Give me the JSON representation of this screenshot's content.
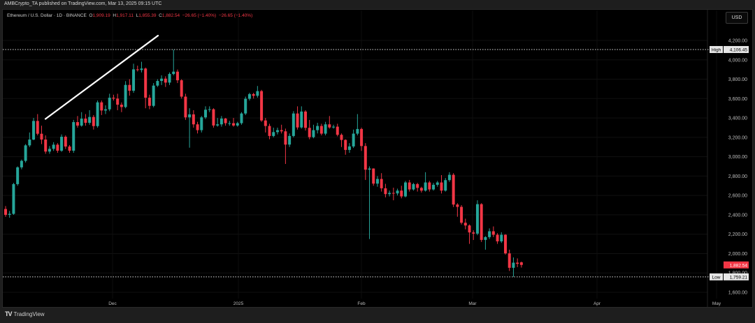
{
  "publisher_line": "AMBCrypto_TA published on TradingView.com, Mar 13, 2025 09:15 UTC",
  "legend": {
    "symbol": "Ethereum / U.S. Dollar · 1D · BINANCE",
    "o_label": "O",
    "o": "1,909.19",
    "h_label": "H",
    "h": "1,917.11",
    "l_label": "L",
    "l": "1,855.39",
    "c_label": "C",
    "c": "1,882.54",
    "change": "−26.65 (−1.40%)",
    "change2": "−26.65 (−1.40%)"
  },
  "currency_button": "USD",
  "footer": {
    "logo_text": "TradingView",
    "logo_icon": "tradingview-logo-icon"
  },
  "colors": {
    "up": "#26a69a",
    "down": "#f23645",
    "background": "#000000",
    "annotation_line": "#ffffff"
  },
  "chart_data": {
    "type": "candlestick",
    "symbol": "ETHUSD",
    "interval": "1D",
    "y_ticks": [
      "4,200.00",
      "4,000.00",
      "3,800.00",
      "3,600.00",
      "3,400.00",
      "3,200.00",
      "3,000.00",
      "2,800.00",
      "2,600.00",
      "2,400.00",
      "2,200.00",
      "2,000.00",
      "1,800.00",
      "1,600.00"
    ],
    "y_tick_values": [
      4200,
      4000,
      3800,
      3600,
      3400,
      3200,
      3000,
      2800,
      2600,
      2400,
      2200,
      2000,
      1800,
      1600
    ],
    "ylim": [
      1600,
      4200
    ],
    "x_ticks": [
      "Dec",
      "2025",
      "Feb",
      "Mar",
      "Apr",
      "May"
    ],
    "high_marker": {
      "label": "High",
      "value": 4106.45,
      "text": "4,106.45"
    },
    "low_marker": {
      "label": "Low",
      "value": 1759.21,
      "text": "1,759.21"
    },
    "last_price": {
      "value": 1882.54,
      "text": "1,882.54"
    },
    "trendline": {
      "from_price": 3390,
      "to_price": 4250
    },
    "candles_ohlc": [
      [
        2460,
        2490,
        2380,
        2400
      ],
      [
        2400,
        2440,
        2370,
        2410
      ],
      [
        2410,
        2730,
        2400,
        2717
      ],
      [
        2717,
        2900,
        2700,
        2890
      ],
      [
        2890,
        2970,
        2870,
        2957
      ],
      [
        2957,
        3130,
        2940,
        3117
      ],
      [
        3117,
        3250,
        3100,
        3177
      ],
      [
        3177,
        3400,
        3170,
        3369
      ],
      [
        3369,
        3440,
        3220,
        3237
      ],
      [
        3237,
        3320,
        3130,
        3177
      ],
      [
        3177,
        3220,
        3030,
        3053
      ],
      [
        3053,
        3110,
        3030,
        3081
      ],
      [
        3081,
        3150,
        3060,
        3124
      ],
      [
        3124,
        3140,
        3040,
        3062
      ],
      [
        3062,
        3230,
        3050,
        3206
      ],
      [
        3206,
        3220,
        3080,
        3105
      ],
      [
        3105,
        3120,
        3040,
        3062
      ],
      [
        3062,
        3380,
        3040,
        3357
      ],
      [
        3357,
        3420,
        3300,
        3321
      ],
      [
        3321,
        3460,
        3310,
        3393
      ],
      [
        3393,
        3440,
        3320,
        3350
      ],
      [
        3350,
        3480,
        3330,
        3410
      ],
      [
        3410,
        3430,
        3280,
        3316
      ],
      [
        3316,
        3580,
        3300,
        3561
      ],
      [
        3561,
        3580,
        3430,
        3477
      ],
      [
        3477,
        3530,
        3440,
        3489
      ],
      [
        3489,
        3650,
        3470,
        3609
      ],
      [
        3609,
        3640,
        3580,
        3600
      ],
      [
        3600,
        3650,
        3480,
        3537
      ],
      [
        3537,
        3560,
        3460,
        3513
      ],
      [
        3513,
        3780,
        3500,
        3741
      ],
      [
        3741,
        3800,
        3630,
        3681
      ],
      [
        3681,
        3960,
        3660,
        3902
      ],
      [
        3902,
        3940,
        3880,
        3895
      ],
      [
        3895,
        3980,
        3870,
        3910
      ],
      [
        3910,
        3920,
        3500,
        3609
      ],
      [
        3609,
        3640,
        3490,
        3525
      ],
      [
        3525,
        3760,
        3510,
        3734
      ],
      [
        3734,
        3800,
        3720,
        3782
      ],
      [
        3782,
        3840,
        3740,
        3806
      ],
      [
        3806,
        3830,
        3720,
        3765
      ],
      [
        3765,
        3870,
        3740,
        3854
      ],
      [
        3854,
        4106.45,
        3840,
        3878
      ],
      [
        3878,
        3900,
        3760,
        3789
      ],
      [
        3789,
        3800,
        3600,
        3620
      ],
      [
        3620,
        3650,
        3380,
        3406
      ],
      [
        3406,
        3500,
        3093,
        3437
      ],
      [
        3437,
        3480,
        3300,
        3334
      ],
      [
        3334,
        3360,
        3240,
        3274
      ],
      [
        3274,
        3420,
        3250,
        3406
      ],
      [
        3406,
        3520,
        3390,
        3485
      ],
      [
        3485,
        3520,
        3460,
        3490
      ],
      [
        3490,
        3500,
        3300,
        3322
      ],
      [
        3322,
        3400,
        3310,
        3334
      ],
      [
        3334,
        3420,
        3310,
        3394
      ],
      [
        3394,
        3400,
        3320,
        3346
      ],
      [
        3346,
        3370,
        3320,
        3346
      ],
      [
        3346,
        3400,
        3310,
        3322
      ],
      [
        3322,
        3360,
        3310,
        3346
      ],
      [
        3346,
        3460,
        3330,
        3446
      ],
      [
        3446,
        3620,
        3430,
        3598
      ],
      [
        3598,
        3660,
        3580,
        3646
      ],
      [
        3646,
        3660,
        3600,
        3629
      ],
      [
        3629,
        3730,
        3610,
        3677
      ],
      [
        3677,
        3690,
        3360,
        3374
      ],
      [
        3374,
        3400,
        3250,
        3317
      ],
      [
        3317,
        3340,
        3180,
        3214
      ],
      [
        3214,
        3300,
        3200,
        3254
      ],
      [
        3254,
        3300,
        3230,
        3274
      ],
      [
        3274,
        3330,
        3240,
        3262
      ],
      [
        3262,
        3290,
        2925,
        3125
      ],
      [
        3125,
        3240,
        3100,
        3214
      ],
      [
        3214,
        3470,
        3200,
        3446
      ],
      [
        3446,
        3520,
        3280,
        3302
      ],
      [
        3302,
        3520,
        3290,
        3466
      ],
      [
        3466,
        3480,
        3270,
        3298
      ],
      [
        3298,
        3380,
        3180,
        3202
      ],
      [
        3202,
        3330,
        3190,
        3274
      ],
      [
        3274,
        3350,
        3240,
        3317
      ],
      [
        3317,
        3340,
        3220,
        3238
      ],
      [
        3238,
        3360,
        3220,
        3334
      ],
      [
        3334,
        3420,
        3290,
        3302
      ],
      [
        3302,
        3330,
        3290,
        3310
      ],
      [
        3310,
        3340,
        3210,
        3226
      ],
      [
        3226,
        3240,
        3100,
        3173
      ],
      [
        3173,
        3180,
        3020,
        3070
      ],
      [
        3070,
        3140,
        3040,
        3106
      ],
      [
        3106,
        3280,
        3090,
        3238
      ],
      [
        3238,
        3440,
        3220,
        3286
      ],
      [
        3286,
        3300,
        3060,
        3110
      ],
      [
        3110,
        3140,
        2760,
        2866
      ],
      [
        2866,
        2900,
        2150,
        2878
      ],
      [
        2878,
        2880,
        2700,
        2722
      ],
      [
        2722,
        2800,
        2690,
        2770
      ],
      [
        2770,
        2830,
        2640,
        2674
      ],
      [
        2674,
        2720,
        2580,
        2614
      ],
      [
        2614,
        2650,
        2590,
        2626
      ],
      [
        2626,
        2680,
        2550,
        2621
      ],
      [
        2621,
        2670,
        2600,
        2650
      ],
      [
        2650,
        2700,
        2570,
        2590
      ],
      [
        2590,
        2750,
        2580,
        2734
      ],
      [
        2734,
        2760,
        2640,
        2662
      ],
      [
        2662,
        2730,
        2650,
        2717
      ],
      [
        2717,
        2730,
        2640,
        2678
      ],
      [
        2678,
        2690,
        2630,
        2650
      ],
      [
        2650,
        2840,
        2640,
        2734
      ],
      [
        2734,
        2750,
        2640,
        2662
      ],
      [
        2662,
        2730,
        2650,
        2710
      ],
      [
        2710,
        2750,
        2690,
        2734
      ],
      [
        2734,
        2810,
        2620,
        2650
      ],
      [
        2650,
        2780,
        2640,
        2758
      ],
      [
        2758,
        2840,
        2740,
        2813
      ],
      [
        2813,
        2830,
        2480,
        2506
      ],
      [
        2506,
        2520,
        2380,
        2482
      ],
      [
        2482,
        2500,
        2300,
        2318
      ],
      [
        2318,
        2360,
        2250,
        2290
      ],
      [
        2290,
        2300,
        2100,
        2218
      ],
      [
        2218,
        2240,
        2140,
        2206
      ],
      [
        2206,
        2550,
        2190,
        2510
      ],
      [
        2510,
        2520,
        2120,
        2141
      ],
      [
        2141,
        2180,
        2040,
        2170
      ],
      [
        2170,
        2260,
        2150,
        2230
      ],
      [
        2230,
        2280,
        2170,
        2194
      ],
      [
        2194,
        2210,
        2100,
        2126
      ],
      [
        2126,
        2220,
        2110,
        2194
      ],
      [
        2194,
        2200,
        1990,
        2002
      ],
      [
        2002,
        2040,
        1820,
        1853
      ],
      [
        1853,
        1960,
        1759.21,
        1906
      ],
      [
        1906,
        1950,
        1860,
        1894
      ],
      [
        1909.19,
        1917.11,
        1855.39,
        1882.54
      ]
    ]
  }
}
